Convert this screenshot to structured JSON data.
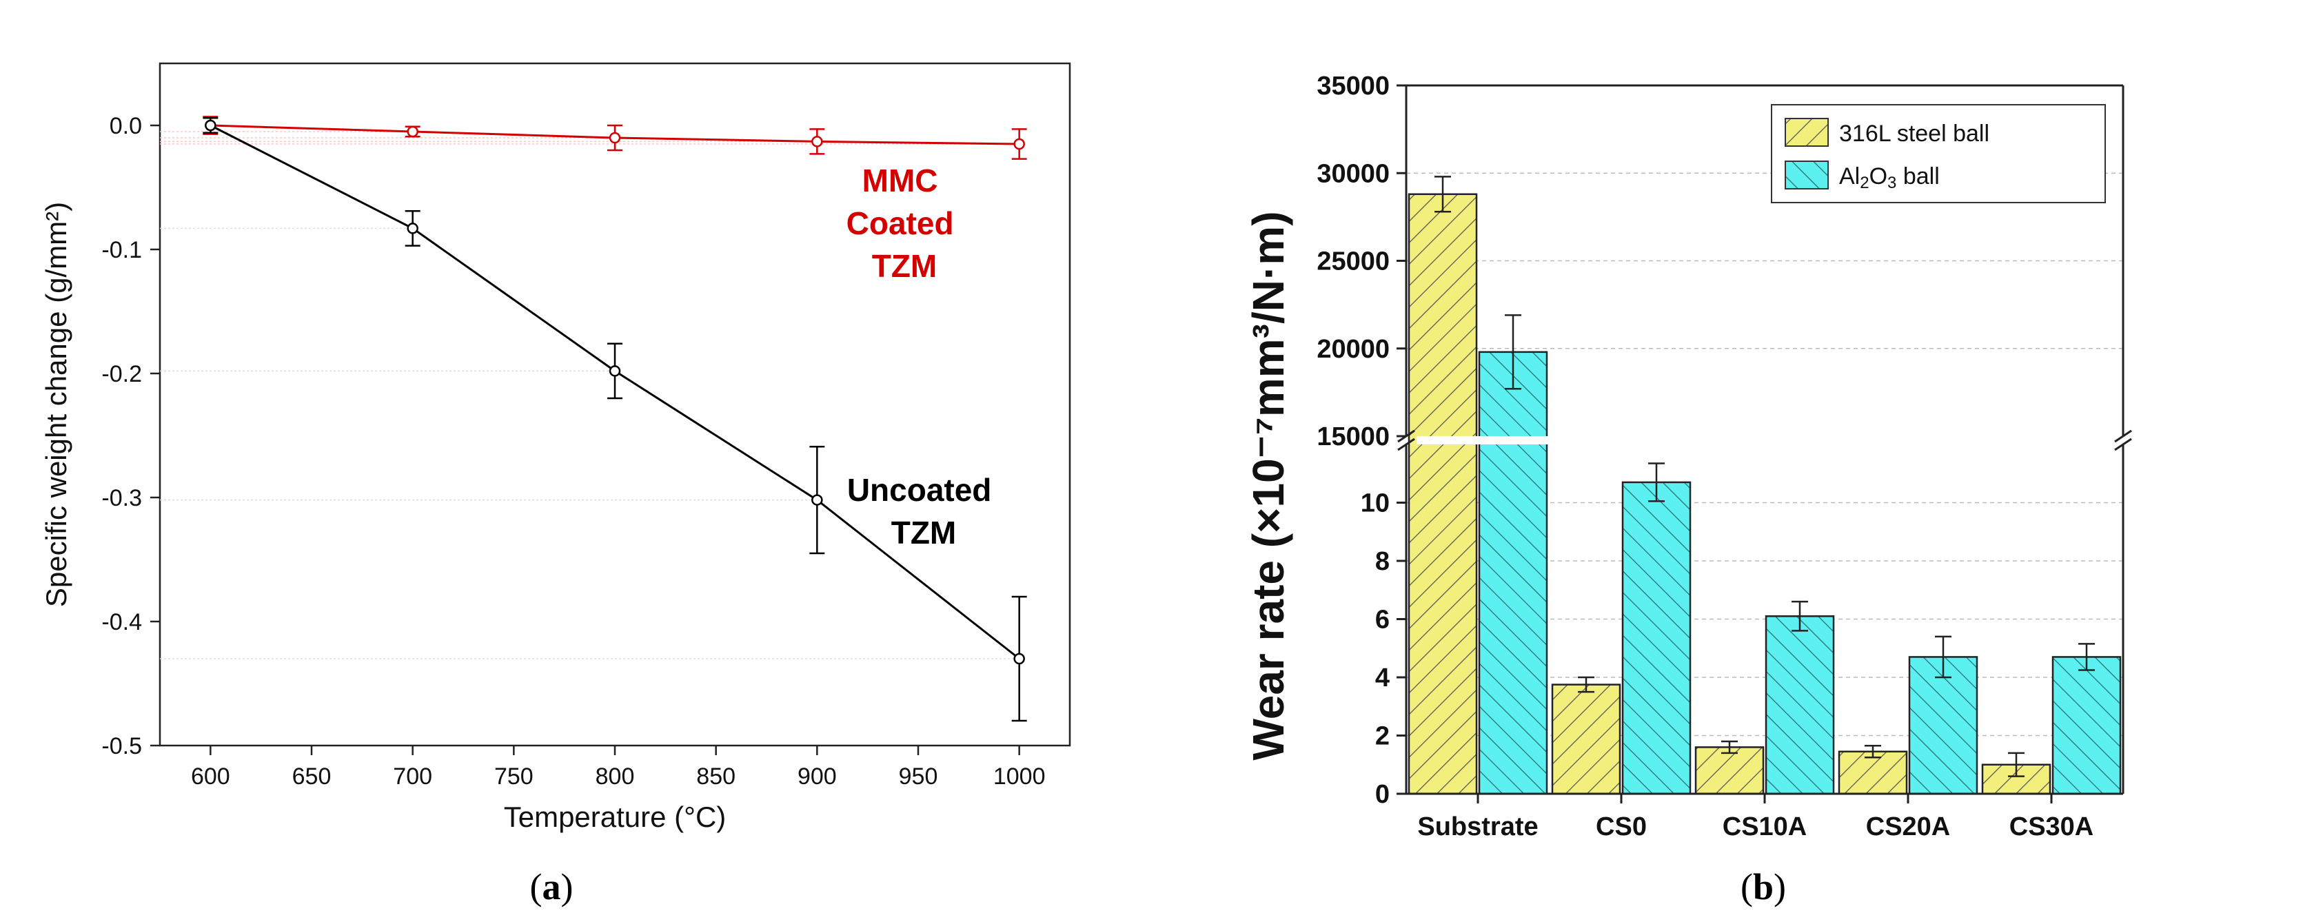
{
  "colors": {
    "red": "#d40000",
    "black": "#000000",
    "yellow": "#f2ef7c",
    "cyan": "#5cf0f0"
  },
  "chart_data": [
    {
      "type": "line",
      "caption_letter": "a",
      "xlabel": "Temperature (°C)",
      "ylabel": "Specific weight change (g/mm²)",
      "x": [
        600,
        700,
        800,
        900,
        1000
      ],
      "xlim": [
        575,
        1025
      ],
      "ylim": [
        -0.5,
        0.05
      ],
      "xticks": [
        "600",
        "650",
        "700",
        "750",
        "800",
        "850",
        "900",
        "950",
        "1000"
      ],
      "yticks": [
        "0.0",
        "-0.1",
        "-0.2",
        "-0.3",
        "-0.4",
        "-0.5"
      ],
      "series": [
        {
          "name": "MMC Coated TZM",
          "label_lines": [
            "MMC",
            "Coated",
            "TZM"
          ],
          "color": "red",
          "values": [
            0.0,
            -0.005,
            -0.01,
            -0.013,
            -0.015
          ],
          "errors": [
            0.007,
            0.004,
            0.01,
            0.01,
            0.012
          ]
        },
        {
          "name": "Uncoated TZM",
          "label_lines": [
            "Uncoated",
            "TZM"
          ],
          "color": "black",
          "values": [
            0.0,
            -0.083,
            -0.198,
            -0.302,
            -0.43
          ],
          "errors": [
            0.006,
            0.014,
            0.022,
            0.043,
            0.05
          ]
        }
      ],
      "grid": false
    },
    {
      "type": "bar",
      "caption_letter": "b",
      "ylabel": "Wear rate (×10⁻⁷mm³/N·m)",
      "categories": [
        "Substrate",
        "CS0",
        "CS10A",
        "CS20A",
        "CS30A"
      ],
      "broken_axis": true,
      "ylim_lower": [
        0,
        12
      ],
      "ylim_upper": [
        15000,
        35000
      ],
      "yticks_lower": [
        "0",
        "2",
        "4",
        "6",
        "8",
        "10"
      ],
      "yticks_upper": [
        "15000",
        "20000",
        "25000",
        "30000",
        "35000"
      ],
      "series": [
        {
          "name": "316L steel ball",
          "color": "yellow",
          "values": [
            28800,
            3.75,
            1.6,
            1.45,
            1.0
          ],
          "errors": [
            1000,
            0.25,
            0.2,
            0.2,
            0.4
          ]
        },
        {
          "name": "Al2O3 ball",
          "color": "cyan",
          "values": [
            19800,
            10.7,
            6.1,
            4.7,
            4.7
          ],
          "errors": [
            2100,
            0.65,
            0.5,
            0.7,
            0.45
          ]
        }
      ],
      "legend": "top-right",
      "grid": true
    }
  ]
}
